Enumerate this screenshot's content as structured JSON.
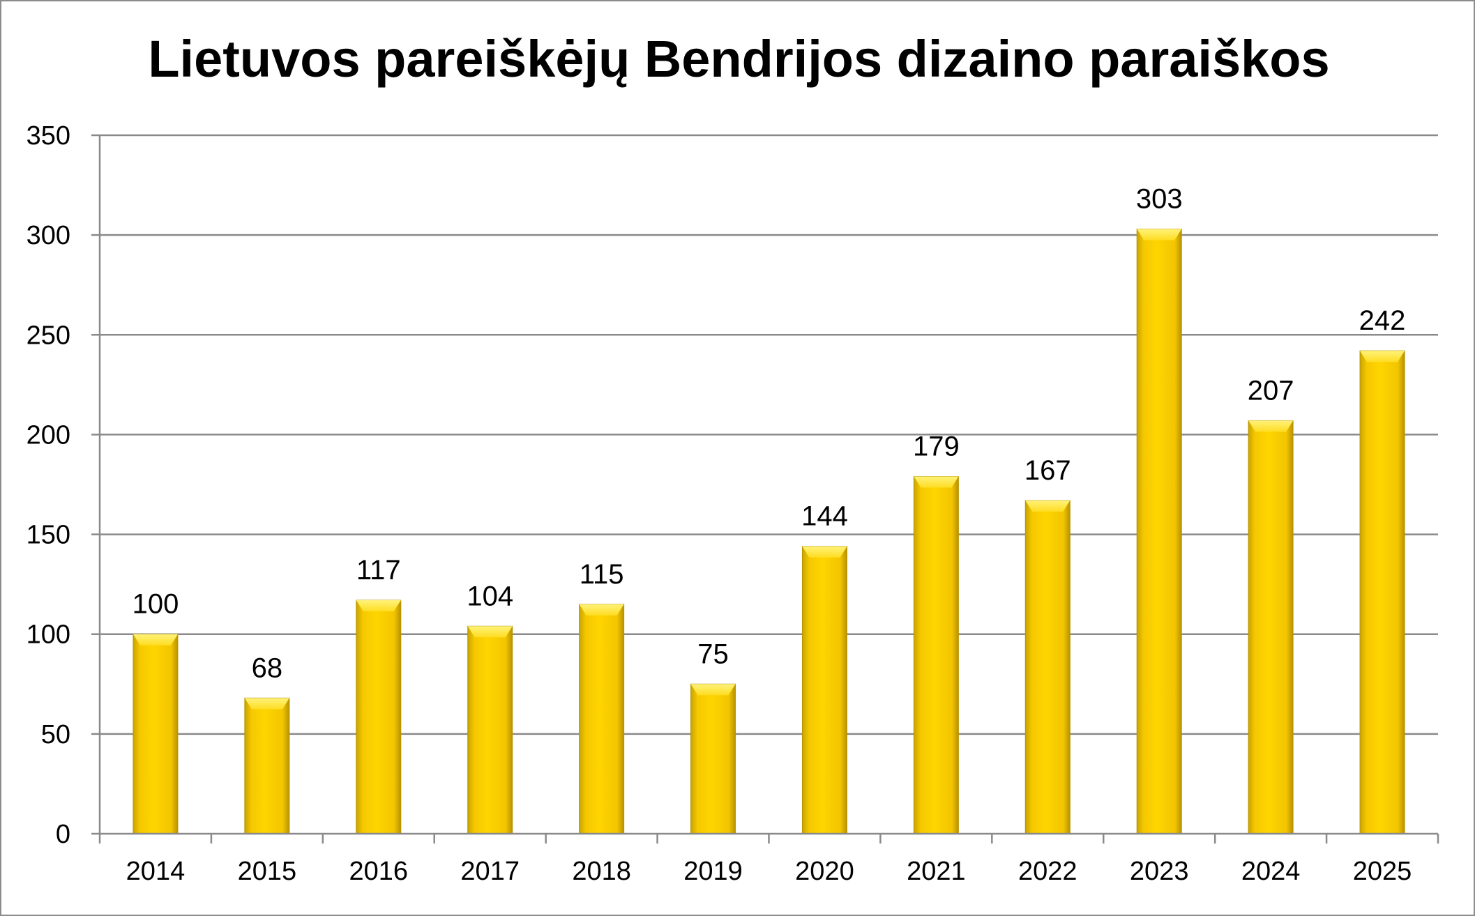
{
  "chart_data": {
    "type": "bar",
    "title": "Lietuvos pareiškėjų Bendrijos dizaino paraiškos",
    "categories": [
      "2014",
      "2015",
      "2016",
      "2017",
      "2018",
      "2019",
      "2020",
      "2021",
      "2022",
      "2023",
      "2024",
      "2025"
    ],
    "values": [
      100,
      68,
      117,
      104,
      115,
      75,
      144,
      179,
      167,
      303,
      207,
      242
    ],
    "ylim": [
      0,
      350
    ],
    "yticks": [
      "0",
      "50",
      "100",
      "150",
      "200",
      "250",
      "300",
      "350"
    ],
    "grid": true,
    "legend": "none",
    "bar_color": "#FFD700",
    "data_labels": true
  }
}
